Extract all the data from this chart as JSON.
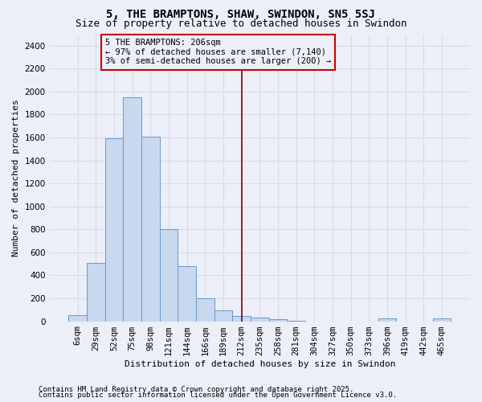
{
  "title": "5, THE BRAMPTONS, SHAW, SWINDON, SN5 5SJ",
  "subtitle": "Size of property relative to detached houses in Swindon",
  "xlabel": "Distribution of detached houses by size in Swindon",
  "ylabel": "Number of detached properties",
  "footer1": "Contains HM Land Registry data © Crown copyright and database right 2025.",
  "footer2": "Contains public sector information licensed under the Open Government Licence v3.0.",
  "categories": [
    "6sqm",
    "29sqm",
    "52sqm",
    "75sqm",
    "98sqm",
    "121sqm",
    "144sqm",
    "166sqm",
    "189sqm",
    "212sqm",
    "235sqm",
    "258sqm",
    "281sqm",
    "304sqm",
    "327sqm",
    "350sqm",
    "373sqm",
    "396sqm",
    "419sqm",
    "442sqm",
    "465sqm"
  ],
  "values": [
    55,
    510,
    1590,
    1950,
    1610,
    800,
    480,
    200,
    95,
    45,
    30,
    17,
    5,
    0,
    0,
    0,
    0,
    22,
    0,
    0,
    22
  ],
  "bar_color": "#c8d8ee",
  "bar_edge_color": "#6699cc",
  "bg_color": "#eceef8",
  "grid_color": "#d8dae8",
  "vline_x": 9.0,
  "vline_color": "#880000",
  "annotation_text": "5 THE BRAMPTONS: 206sqm\n← 97% of detached houses are smaller (7,140)\n3% of semi-detached houses are larger (200) →",
  "annotation_box_color": "#cc0000",
  "ylim": [
    0,
    2500
  ],
  "yticks": [
    0,
    200,
    400,
    600,
    800,
    1000,
    1200,
    1400,
    1600,
    1800,
    2000,
    2200,
    2400
  ],
  "title_fontsize": 10,
  "subtitle_fontsize": 9,
  "annotation_fontsize": 7.5,
  "axis_label_fontsize": 8,
  "tick_fontsize": 7.5,
  "footer_fontsize": 6.5
}
